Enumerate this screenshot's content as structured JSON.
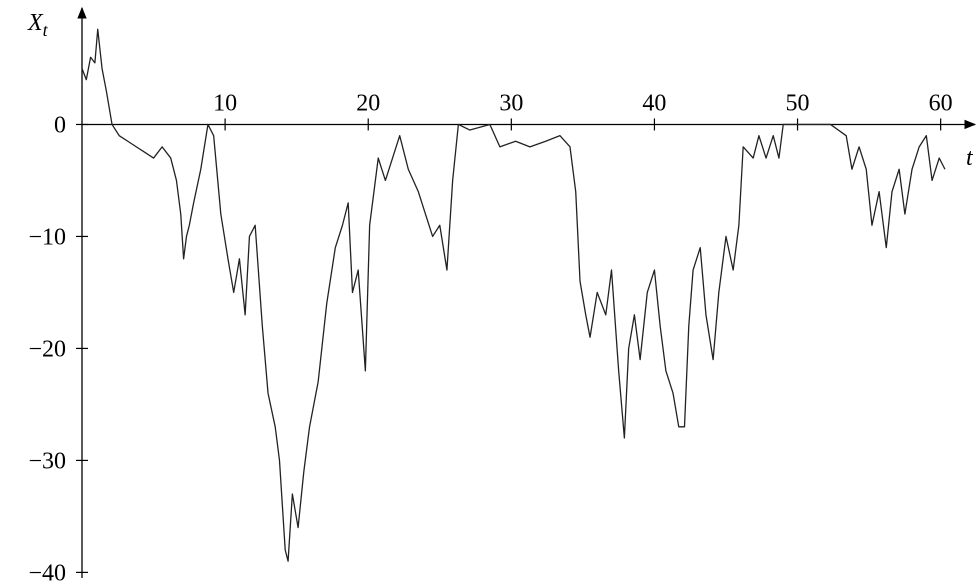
{
  "chart_data": {
    "type": "line",
    "x_label": "t",
    "y_label": "Xt",
    "xlim": [
      0,
      62.4
    ],
    "ylim": [
      -40.5,
      10.4
    ],
    "xticks": [
      10,
      20,
      30,
      40,
      50,
      60
    ],
    "yticks": [
      0,
      {
        "value": -10,
        "label": "−10"
      },
      {
        "value": -20,
        "label": "−20"
      },
      {
        "value": -30,
        "label": "−30"
      },
      {
        "value": -40,
        "label": "−40"
      }
    ],
    "color": "#222222",
    "x": [
      0,
      0.3,
      0.6,
      0.9,
      1.1,
      1.4,
      1.7,
      2.1,
      2.6,
      3.2,
      3.8,
      4.4,
      5,
      5.6,
      6.2,
      6.6,
      6.9,
      7.1,
      7.3,
      7.5,
      7.8,
      8.3,
      8.8,
      9.2,
      9.7,
      10.2,
      10.6,
      11,
      11.4,
      11.7,
      12.1,
      12.6,
      13,
      13.5,
      13.8,
      14.2,
      14.4,
      14.7,
      15.1,
      15.5,
      15.9,
      16.5,
      17.1,
      17.7,
      18.2,
      18.6,
      18.9,
      19.3,
      19.8,
      20.1,
      20.7,
      21.2,
      21.7,
      22.2,
      22.8,
      23.5,
      24,
      24.5,
      25,
      25.5,
      25.9,
      26.3,
      27.1,
      28.5,
      29.2,
      30.3,
      31.3,
      32.4,
      33.4,
      34.1,
      34.5,
      34.8,
      35.2,
      35.5,
      36,
      36.6,
      37,
      37.5,
      37.9,
      38.2,
      38.6,
      39,
      39.5,
      40,
      40.4,
      40.8,
      41.3,
      41.7,
      42.1,
      42.4,
      42.7,
      43.2,
      43.6,
      44.1,
      44.5,
      45,
      45.5,
      45.9,
      46.2,
      46.9,
      47.3,
      47.8,
      48.3,
      48.7,
      49,
      50.2,
      51.3,
      52.3,
      53.4,
      53.8,
      54.3,
      54.8,
      55.2,
      55.7,
      56.2,
      56.6,
      57.1,
      57.5,
      58,
      58.5,
      59,
      59.4,
      59.9,
      60.3
    ],
    "values": [
      5,
      4,
      6,
      5.5,
      8.5,
      5,
      3,
      0,
      -1,
      -1.5,
      -2,
      -2.5,
      -3,
      -2,
      -3,
      -5,
      -8,
      -12,
      -10,
      -9,
      -7,
      -4,
      0,
      -1,
      -8,
      -12,
      -15,
      -12,
      -17,
      -10,
      -9,
      -18,
      -24,
      -27,
      -30,
      -38,
      -39,
      -33,
      -36,
      -31,
      -27,
      -23,
      -16,
      -11,
      -9,
      -7,
      -15,
      -13,
      -22,
      -9,
      -3,
      -5,
      -3,
      -1,
      -4,
      -6,
      -8,
      -10,
      -9,
      -13,
      -5,
      0,
      -0.5,
      0,
      -2,
      -1.5,
      -2,
      -1.5,
      -1,
      -2,
      -6,
      -14,
      -17,
      -19,
      -15,
      -17,
      -13,
      -22,
      -28,
      -20,
      -17,
      -21,
      -15,
      -13,
      -18,
      -22,
      -24,
      -27,
      -27,
      -18,
      -13,
      -11,
      -17,
      -21,
      -15,
      -10,
      -13,
      -9,
      -2,
      -3,
      -1,
      -3,
      -1,
      -3,
      0,
      0,
      0,
      0,
      -1,
      -4,
      -2,
      -4,
      -9,
      -6,
      -11,
      -6,
      -4,
      -8,
      -4,
      -2,
      -1,
      -5,
      -3,
      -4
    ]
  }
}
